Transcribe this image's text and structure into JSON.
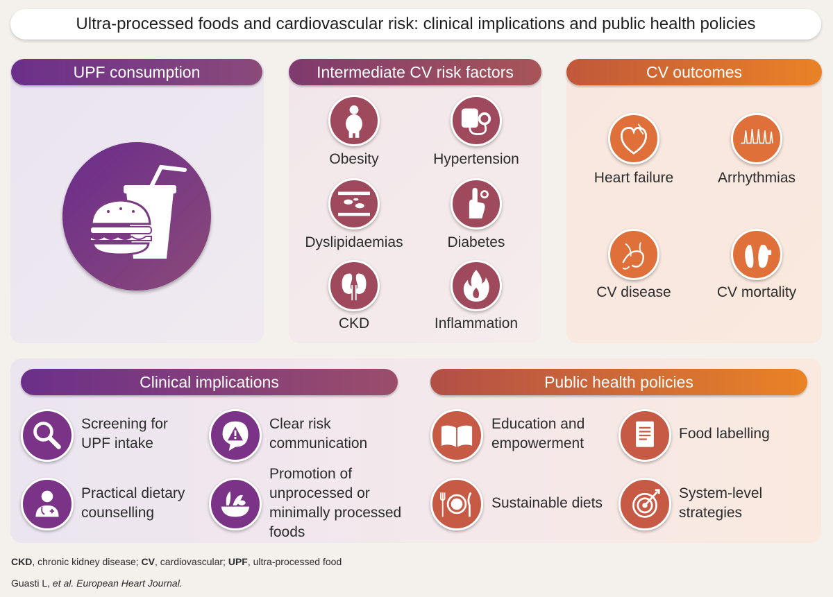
{
  "title": "Ultra-processed foods and cardiovascular risk: clinical implications and public health policies",
  "sections": {
    "upf": {
      "header": "UPF consumption"
    },
    "risk": {
      "header": "Intermediate CV risk factors",
      "items": [
        {
          "label": "Obesity",
          "icon": "obesity-icon"
        },
        {
          "label": "Hypertension",
          "icon": "blood-pressure-monitor-icon"
        },
        {
          "label": "Dyslipidaemias",
          "icon": "lipid-artery-icon"
        },
        {
          "label": "Diabetes",
          "icon": "glucose-finger-test-icon"
        },
        {
          "label": "CKD",
          "icon": "kidneys-icon"
        },
        {
          "label": "Inflammation",
          "icon": "flame-icon"
        }
      ]
    },
    "outcomes": {
      "header": "CV outcomes",
      "items": [
        {
          "label": "Heart failure",
          "icon": "heart-icon"
        },
        {
          "label": "Arrhythmias",
          "icon": "ecg-waveform-icon"
        },
        {
          "label": "CV disease",
          "icon": "vessels-icon"
        },
        {
          "label": "CV mortality",
          "icon": "feet-tag-icon"
        }
      ]
    },
    "clinical": {
      "header": "Clinical implications",
      "items": [
        {
          "lines": [
            "Screening for",
            "UPF intake"
          ],
          "icon": "magnifier-icon"
        },
        {
          "lines": [
            "Clear risk",
            "communication"
          ],
          "icon": "warning-bubble-icon"
        },
        {
          "lines": [
            "Practical dietary",
            "counselling"
          ],
          "icon": "doctor-icon"
        },
        {
          "lines": [
            "Promotion of",
            "unprocessed or",
            "minimally processed",
            "foods"
          ],
          "icon": "vegetables-bowl-icon"
        }
      ]
    },
    "public": {
      "header": "Public health policies",
      "items": [
        {
          "lines": [
            "Education and",
            "empowerment"
          ],
          "icon": "open-book-icon"
        },
        {
          "lines": [
            "Food labelling"
          ],
          "icon": "label-document-icon"
        },
        {
          "lines": [
            "Sustainable diets"
          ],
          "icon": "plate-cutlery-icon"
        },
        {
          "lines": [
            "System-level",
            "strategies"
          ],
          "icon": "target-icon"
        }
      ]
    }
  },
  "footnote": {
    "abbr": [
      {
        "term": "CKD",
        "def": ", chronic kidney disease; "
      },
      {
        "term": "CV",
        "def": ", cardiovascular; "
      },
      {
        "term": "UPF",
        "def": ", ultra-processed food"
      }
    ],
    "citation_author": "Guasti L, ",
    "citation_journal": "et al. European Heart Journal."
  },
  "colors": {
    "purple": "#6b2f8a",
    "mauve": "#9e4a5c",
    "orange": "#e98326"
  }
}
